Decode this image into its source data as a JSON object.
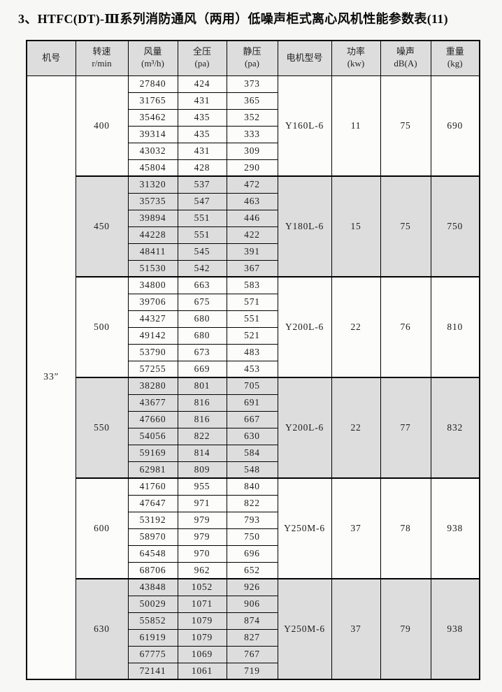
{
  "title": "3、HTFC(DT)-Ⅲ系列消防通风（两用）低噪声柜式离心风机性能参数表(11)",
  "colors": {
    "shade": "#dddddd",
    "border": "#000000",
    "page_background": "#f7f7f5"
  },
  "table": {
    "machine_no": "33″",
    "columns": [
      {
        "line1": "机号",
        "line2": ""
      },
      {
        "line1": "转速",
        "line2": "r/min"
      },
      {
        "line1": "风量",
        "line2": "(m³/h)"
      },
      {
        "line1": "全压",
        "line2": "(pa)"
      },
      {
        "line1": "静压",
        "line2": "(pa)"
      },
      {
        "line1": "电机型号",
        "line2": ""
      },
      {
        "line1": "功率",
        "line2": "(kw)"
      },
      {
        "line1": "噪声",
        "line2": "dB(A)"
      },
      {
        "line1": "重量",
        "line2": "(kg)"
      }
    ],
    "groups": [
      {
        "speed": "400",
        "motor": "Y160L-6",
        "power": "11",
        "noise": "75",
        "weight": "690",
        "shaded": false,
        "rows": [
          [
            "27840",
            "424",
            "373"
          ],
          [
            "31765",
            "431",
            "365"
          ],
          [
            "35462",
            "435",
            "352"
          ],
          [
            "39314",
            "435",
            "333"
          ],
          [
            "43032",
            "431",
            "309"
          ],
          [
            "45804",
            "428",
            "290"
          ]
        ]
      },
      {
        "speed": "450",
        "motor": "Y180L-6",
        "power": "15",
        "noise": "75",
        "weight": "750",
        "shaded": true,
        "rows": [
          [
            "31320",
            "537",
            "472"
          ],
          [
            "35735",
            "547",
            "463"
          ],
          [
            "39894",
            "551",
            "446"
          ],
          [
            "44228",
            "551",
            "422"
          ],
          [
            "48411",
            "545",
            "391"
          ],
          [
            "51530",
            "542",
            "367"
          ]
        ]
      },
      {
        "speed": "500",
        "motor": "Y200L-6",
        "power": "22",
        "noise": "76",
        "weight": "810",
        "shaded": false,
        "rows": [
          [
            "34800",
            "663",
            "583"
          ],
          [
            "39706",
            "675",
            "571"
          ],
          [
            "44327",
            "680",
            "551"
          ],
          [
            "49142",
            "680",
            "521"
          ],
          [
            "53790",
            "673",
            "483"
          ],
          [
            "57255",
            "669",
            "453"
          ]
        ]
      },
      {
        "speed": "550",
        "motor": "Y200L-6",
        "power": "22",
        "noise": "77",
        "weight": "832",
        "shaded": true,
        "rows": [
          [
            "38280",
            "801",
            "705"
          ],
          [
            "43677",
            "816",
            "691"
          ],
          [
            "47660",
            "816",
            "667"
          ],
          [
            "54056",
            "822",
            "630"
          ],
          [
            "59169",
            "814",
            "584"
          ],
          [
            "62981",
            "809",
            "548"
          ]
        ]
      },
      {
        "speed": "600",
        "motor": "Y250M-6",
        "power": "37",
        "noise": "78",
        "weight": "938",
        "shaded": false,
        "rows": [
          [
            "41760",
            "955",
            "840"
          ],
          [
            "47647",
            "971",
            "822"
          ],
          [
            "53192",
            "979",
            "793"
          ],
          [
            "58970",
            "979",
            "750"
          ],
          [
            "64548",
            "970",
            "696"
          ],
          [
            "68706",
            "962",
            "652"
          ]
        ]
      },
      {
        "speed": "630",
        "motor": "Y250M-6",
        "power": "37",
        "noise": "79",
        "weight": "938",
        "shaded": true,
        "rows": [
          [
            "43848",
            "1052",
            "926"
          ],
          [
            "50029",
            "1071",
            "906"
          ],
          [
            "55852",
            "1079",
            "874"
          ],
          [
            "61919",
            "1079",
            "827"
          ],
          [
            "67775",
            "1069",
            "767"
          ],
          [
            "72141",
            "1061",
            "719"
          ]
        ]
      }
    ]
  }
}
